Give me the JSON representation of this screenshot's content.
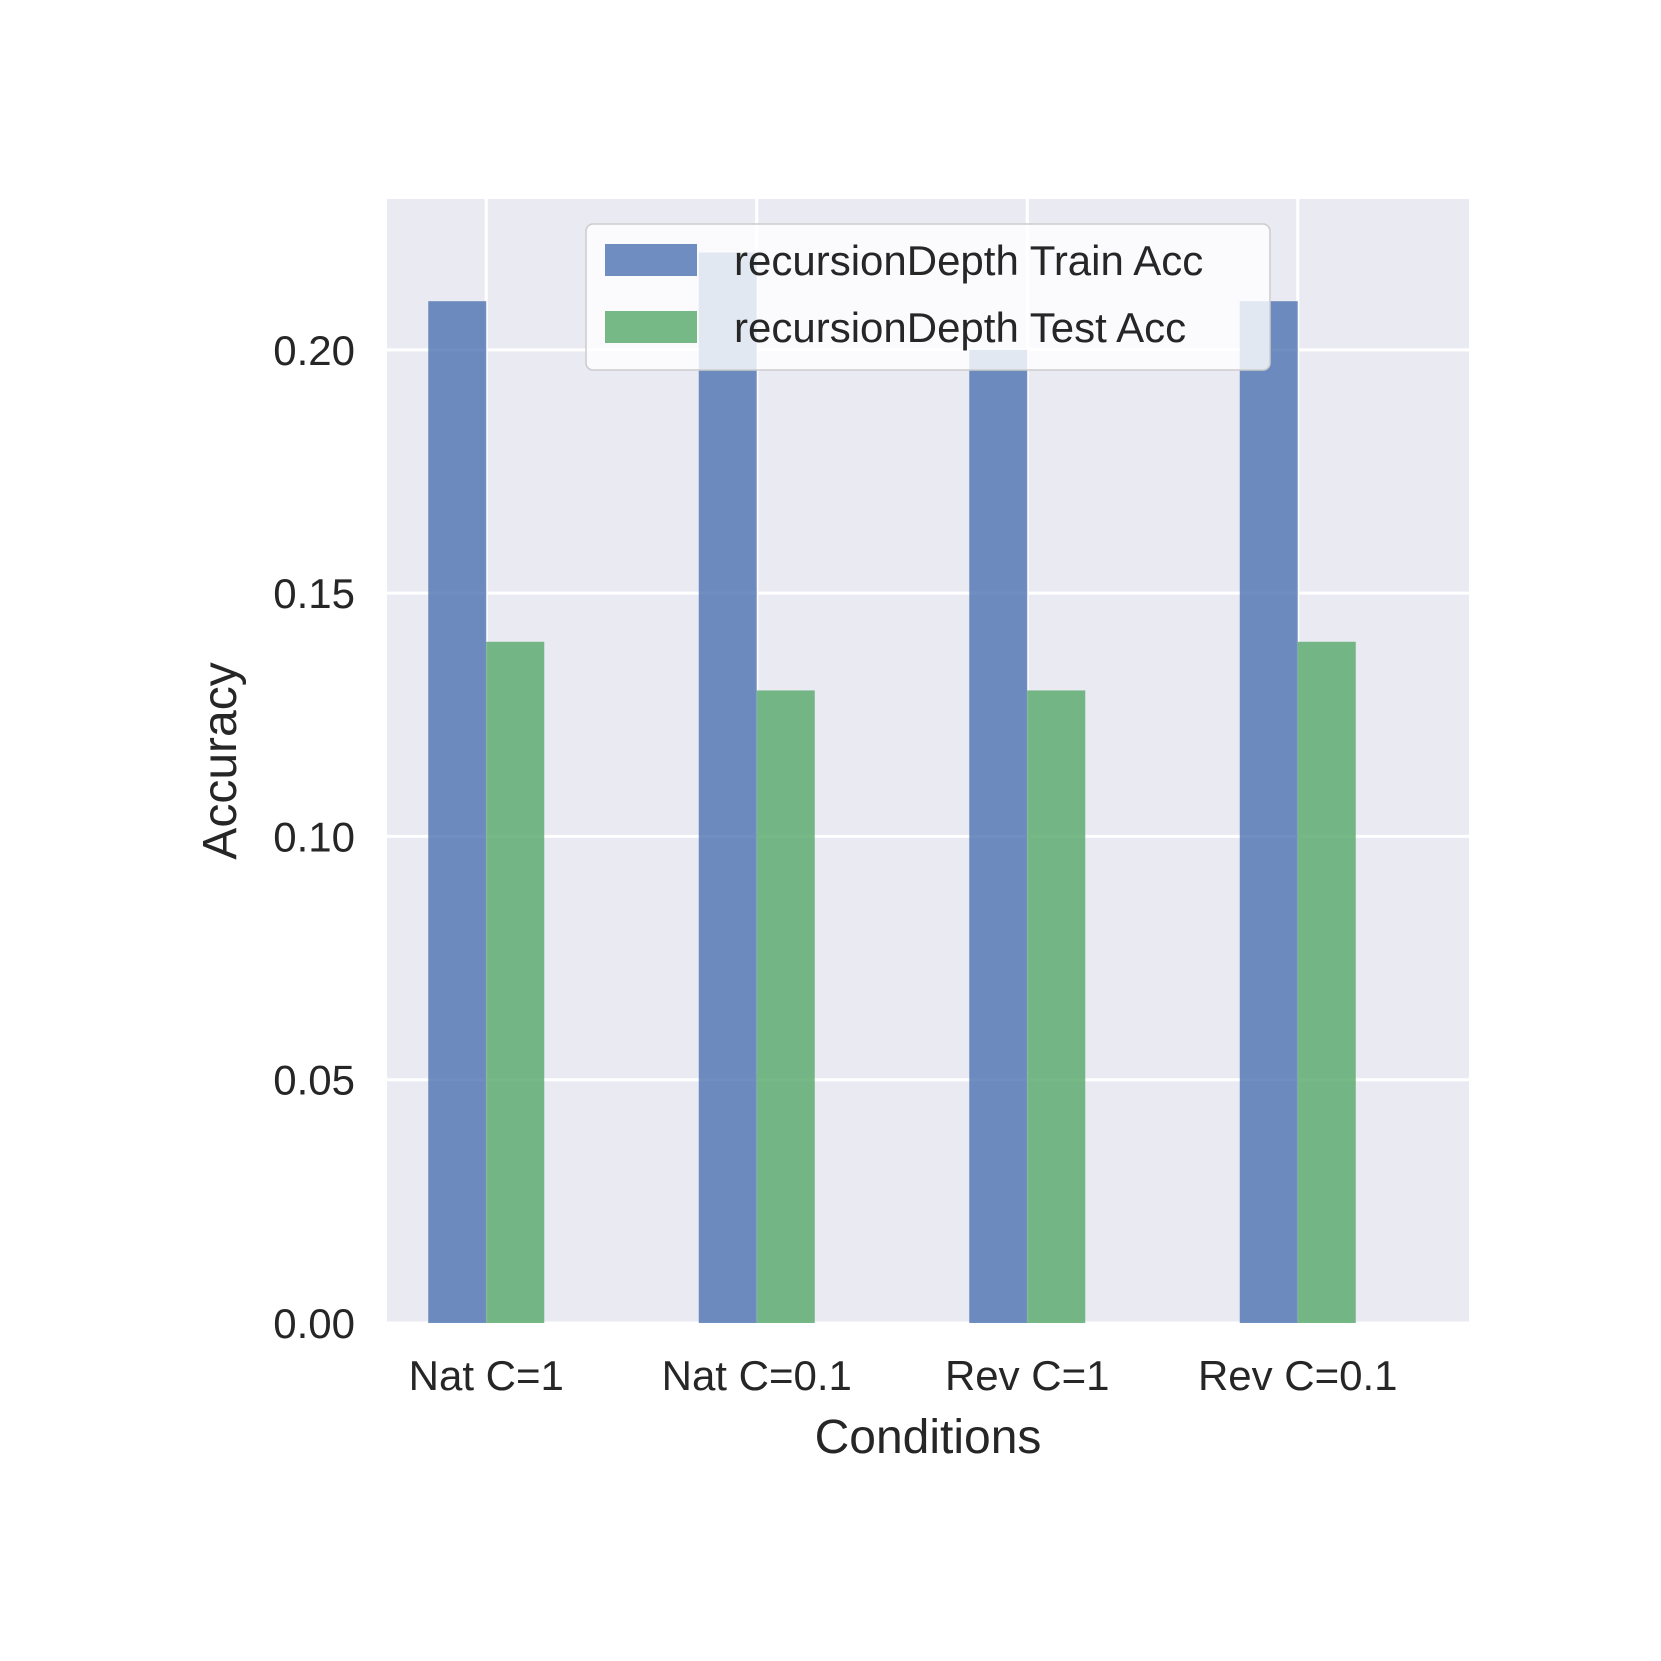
{
  "chart_data": {
    "type": "bar",
    "title": "",
    "xlabel": "Conditions",
    "ylabel": "Accuracy",
    "categories": [
      "Nat C=1",
      "Nat C=0.1",
      "Rev C=1",
      "Rev C=0.1"
    ],
    "series": [
      {
        "name": "recursionDepth Train Acc",
        "values": [
          0.21,
          0.22,
          0.2,
          0.21
        ],
        "color": "#4c72b0"
      },
      {
        "name": "recursionDepth Test Acc",
        "values": [
          0.14,
          0.13,
          0.13,
          0.14
        ],
        "color": "#55a868"
      }
    ],
    "ylim": [
      0,
      0.231
    ],
    "yticks": [
      "0.00",
      "0.05",
      "0.10",
      "0.15",
      "0.20"
    ],
    "grid": true,
    "legend": "top-center",
    "background": "#eaeaf2"
  }
}
